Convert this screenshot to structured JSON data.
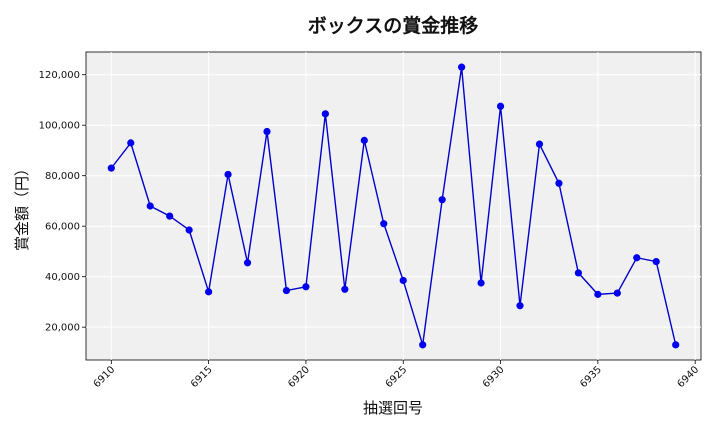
{
  "chart_data": {
    "type": "line",
    "title": "ボックスの賞金推移",
    "xlabel": "抽選回号",
    "ylabel": "賞金額（円）",
    "grid": true,
    "xlim": [
      6908.7,
      6940.3
    ],
    "ylim": [
      7000,
      129000
    ],
    "xticks": [
      6910,
      6915,
      6920,
      6925,
      6930,
      6935,
      6940
    ],
    "yticks": [
      20000,
      40000,
      60000,
      80000,
      100000,
      120000
    ],
    "ytick_labels": [
      "20,000",
      "40,000",
      "60,000",
      "80,000",
      "100,000",
      "120,000"
    ],
    "x": [
      6910,
      6911,
      6912,
      6913,
      6914,
      6915,
      6916,
      6917,
      6918,
      6919,
      6920,
      6921,
      6922,
      6923,
      6924,
      6925,
      6926,
      6927,
      6928,
      6929,
      6930,
      6931,
      6932,
      6933,
      6934,
      6935,
      6936,
      6937,
      6938,
      6939
    ],
    "values": [
      83000,
      93000,
      68000,
      64000,
      58500,
      34000,
      80500,
      45500,
      97500,
      34500,
      36000,
      104500,
      35000,
      94000,
      61000,
      38500,
      13000,
      70500,
      123000,
      37500,
      107500,
      28500,
      92500,
      77000,
      41500,
      33000,
      33500,
      47500,
      46000,
      13000
    ],
    "colors": {
      "line": "#0000cc",
      "marker": "#0000ee",
      "plot_bg": "#f0f0f0",
      "grid": "#ffffff"
    }
  }
}
